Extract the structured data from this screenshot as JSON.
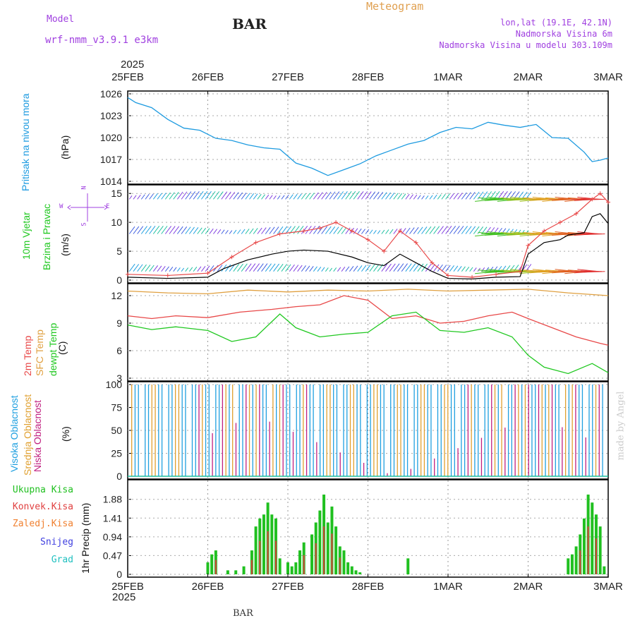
{
  "header": {
    "model_label": "Model",
    "model_name": "wrf-nmm_v3.9.1  e3km",
    "station": "BAR",
    "chart_type": "Meteogram",
    "coords": "lon,lat (19.1E, 42.1N)",
    "elevation": "Nadmorska Visina 6m",
    "model_elevation": "Nadmorska Visina u modelu 303.109m",
    "footer_station": "BAR",
    "watermark": "made by Angel",
    "year": "2025"
  },
  "colors": {
    "purple": "#a040e0",
    "orange": "#e0a050",
    "pressure": "#1e9be0",
    "temp2m": "#e84848",
    "sfc": "#e0a040",
    "dewpt": "#20c820",
    "high_cloud": "#20a0e0",
    "mid_cloud": "#e0a030",
    "low_cloud": "#c02080",
    "total_precip": "#20c020",
    "conv_precip": "#e04040"
  },
  "chart_data": {
    "type": "line",
    "x_ticks": [
      "25FEB",
      "26FEB",
      "27FEB",
      "28FEB",
      "1MAR",
      "2MAR",
      "3MAR"
    ],
    "x_year": "2025",
    "panels": {
      "pressure": {
        "ylabel": "Pritisak na nivou mora",
        "unit": "(hPa)",
        "ylim": [
          1014,
          1026
        ],
        "yticks": [
          "1026",
          "1023",
          "1020",
          "1017",
          "1014"
        ],
        "x_days": [
          0,
          0.1,
          0.3,
          0.5,
          0.7,
          0.9,
          1.1,
          1.3,
          1.5,
          1.7,
          1.9,
          2.1,
          2.3,
          2.5,
          2.7,
          2.9,
          3.1,
          3.3,
          3.5,
          3.7,
          3.9,
          4.1,
          4.3,
          4.5,
          4.7,
          4.9,
          5.1,
          5.3,
          5.5,
          5.7,
          5.8,
          5.9,
          6.0
        ],
        "values": [
          1025.5,
          1024.8,
          1024.1,
          1022.5,
          1021.3,
          1021.0,
          1019.9,
          1019.6,
          1019.0,
          1018.6,
          1018.4,
          1016.5,
          1015.8,
          1014.8,
          1015.6,
          1016.4,
          1017.5,
          1018.3,
          1019.1,
          1019.6,
          1020.7,
          1021.4,
          1021.2,
          1022.1,
          1021.7,
          1021.4,
          1021.8,
          1020.0,
          1019.9,
          1018.0,
          1016.7,
          1016.9,
          1017.2
        ]
      },
      "wind": {
        "ylabel": "10m Vjetar",
        "ylabel2": "Brzina i Pravac",
        "unit": "(m/s)",
        "compass_n": "N",
        "compass_w": "W",
        "compass_e": "E",
        "compass_s": "S",
        "ylim": [
          0,
          16
        ],
        "yticks": [
          "15",
          "10",
          "5",
          "0"
        ],
        "series": [
          {
            "name": "speed",
            "color": "#000000",
            "x_days": [
              0,
              0.5,
              1.0,
              1.2,
              1.5,
              1.8,
              2.0,
              2.2,
              2.5,
              2.8,
              3.0,
              3.2,
              3.4,
              3.6,
              3.8,
              4.0,
              4.3,
              4.6,
              4.9,
              5.0,
              5.2,
              5.4,
              5.5,
              5.7,
              5.8,
              5.9,
              6.0
            ],
            "values": [
              0.5,
              0.3,
              0.5,
              2.0,
              3.5,
              4.5,
              5.0,
              5.2,
              5.0,
              4.0,
              3.0,
              2.5,
              4.5,
              3.0,
              1.5,
              0.3,
              0.2,
              0.5,
              0.6,
              4.5,
              6.5,
              7.0,
              7.8,
              8.2,
              11.0,
              11.5,
              9.8
            ]
          },
          {
            "name": "gust",
            "color": "#e84848",
            "x_days": [
              0,
              0.5,
              1.0,
              1.3,
              1.6,
              1.9,
              2.2,
              2.4,
              2.6,
              2.8,
              3.0,
              3.2,
              3.4,
              3.6,
              3.8,
              4.0,
              4.3,
              4.6,
              4.9,
              5.0,
              5.2,
              5.4,
              5.6,
              5.8,
              5.9,
              6.0
            ],
            "values": [
              1.0,
              0.8,
              1.2,
              4.0,
              6.5,
              8.0,
              8.5,
              9.0,
              10.0,
              8.5,
              7.0,
              5.0,
              8.5,
              6.5,
              3.0,
              0.8,
              0.5,
              1.0,
              1.5,
              6.0,
              8.5,
              10.0,
              11.5,
              14.0,
              15.0,
              13.5
            ]
          }
        ]
      },
      "temperature": {
        "label_2m": "2m Temp",
        "label_sfc": "SFC Temp",
        "label_dewpt": "dewpt Temp",
        "unit": "(C)",
        "ylim": [
          3,
          13
        ],
        "yticks": [
          "12",
          "9",
          "6",
          "3"
        ],
        "series": [
          {
            "name": "2m Temp",
            "color": "#e84848",
            "x_days": [
              0,
              0.3,
              0.6,
              1.0,
              1.4,
              1.8,
              2.1,
              2.4,
              2.7,
              3.0,
              3.3,
              3.6,
              3.9,
              4.2,
              4.5,
              4.8,
              5.0,
              5.3,
              5.6,
              5.9,
              6.0
            ],
            "values": [
              9.8,
              9.5,
              9.8,
              9.6,
              10.2,
              10.5,
              10.8,
              11.0,
              12.0,
              11.5,
              9.5,
              9.8,
              9.0,
              9.2,
              9.8,
              10.2,
              9.5,
              8.5,
              7.5,
              6.8,
              6.6
            ]
          },
          {
            "name": "SFC Temp",
            "color": "#e0a040",
            "x_days": [
              0,
              0.5,
              1.0,
              1.5,
              2.0,
              2.5,
              3.0,
              3.5,
              4.0,
              4.5,
              5.0,
              5.5,
              6.0
            ],
            "values": [
              12.5,
              12.3,
              12.2,
              12.6,
              12.4,
              12.6,
              12.5,
              12.7,
              12.5,
              12.6,
              12.7,
              12.3,
              12.0
            ]
          },
          {
            "name": "dewpt Temp",
            "color": "#20c820",
            "x_days": [
              0,
              0.3,
              0.6,
              1.0,
              1.3,
              1.6,
              1.9,
              2.1,
              2.4,
              2.7,
              3.0,
              3.3,
              3.6,
              3.9,
              4.2,
              4.5,
              4.8,
              5.0,
              5.2,
              5.5,
              5.8,
              6.0
            ],
            "values": [
              8.8,
              8.3,
              8.6,
              8.2,
              7.0,
              7.5,
              10.0,
              8.5,
              7.5,
              7.8,
              8.0,
              9.8,
              10.2,
              8.2,
              8.0,
              8.5,
              7.5,
              5.5,
              4.2,
              3.5,
              4.6,
              3.6
            ]
          }
        ]
      },
      "cloud": {
        "label_high": "Visoka Oblacnost",
        "label_mid": "Srednja Oblacnost",
        "label_low": "Niska Oblacnost",
        "unit": "(%)",
        "ylim": [
          0,
          100
        ],
        "yticks": [
          "100",
          "75",
          "50",
          "25",
          "0"
        ]
      },
      "precip": {
        "label_total": "Ukupna Kisa",
        "label_conv": "Konvek.Kisa",
        "label_frozen": "Zaledj.Kisa",
        "label_snow": "Snijeg",
        "label_hail": "Grad",
        "ylabel": "1hr Precip (mm)",
        "ylim": [
          0,
          2.3
        ],
        "yticks": [
          "1.88",
          "1.41",
          "0.94",
          "0.47",
          "0"
        ],
        "x_days": [
          1.0,
          1.05,
          1.1,
          1.25,
          1.35,
          1.45,
          1.55,
          1.6,
          1.65,
          1.7,
          1.75,
          1.8,
          1.85,
          1.9,
          2.0,
          2.05,
          2.1,
          2.15,
          2.2,
          2.3,
          2.35,
          2.4,
          2.45,
          2.5,
          2.55,
          2.6,
          2.65,
          2.7,
          2.75,
          2.8,
          2.85,
          2.9,
          3.5,
          5.5,
          5.55,
          5.6,
          5.65,
          5.7,
          5.75,
          5.8,
          5.85,
          5.9,
          5.95
        ],
        "values": [
          0.3,
          0.5,
          0.6,
          0.1,
          0.1,
          0.2,
          0.6,
          1.2,
          1.4,
          1.5,
          1.8,
          1.5,
          1.4,
          0.4,
          0.3,
          0.2,
          0.3,
          0.6,
          0.8,
          1.0,
          1.3,
          1.6,
          2.0,
          1.3,
          1.7,
          1.2,
          0.7,
          0.6,
          0.3,
          0.2,
          0.1,
          0.05,
          0.4,
          0.4,
          0.5,
          0.7,
          1.0,
          1.4,
          2.0,
          1.8,
          1.5,
          1.2,
          0.2
        ]
      }
    }
  }
}
